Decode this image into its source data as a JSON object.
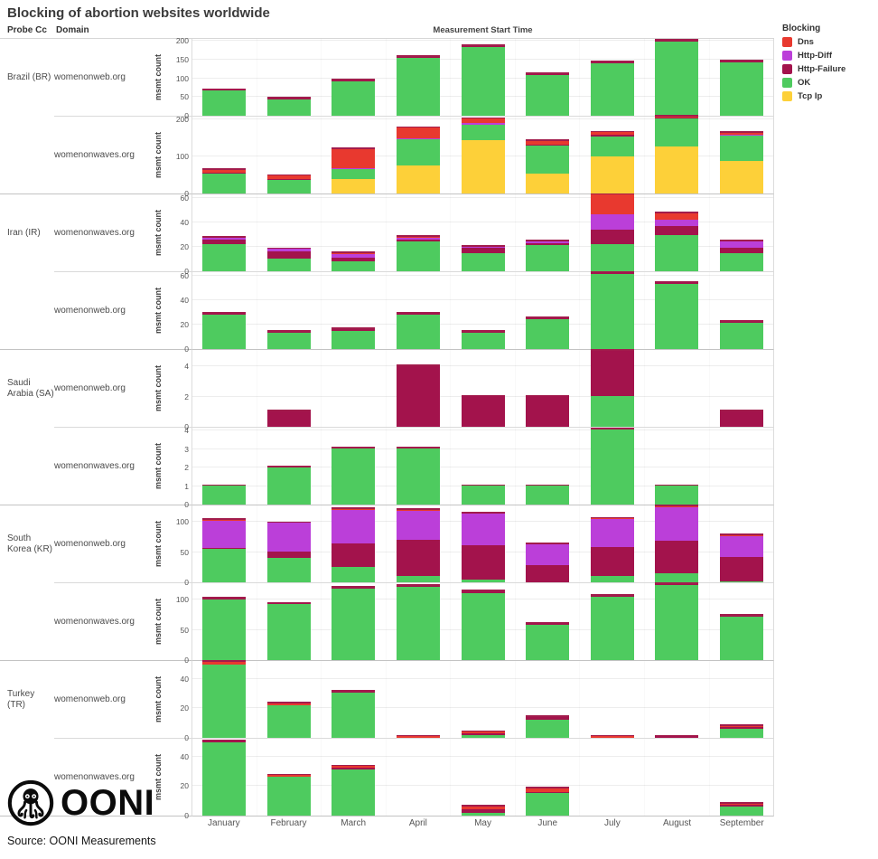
{
  "title": "Blocking of abortion websites worldwide",
  "source": "Source: OONI Measurements",
  "logo": {
    "wordmark": "OONI"
  },
  "header": {
    "probe_cc": "Probe Cc",
    "domain": "Domain",
    "axis_title": "Measurement Start Time",
    "y_label": "msmt count"
  },
  "colors": {
    "dns": "#e8392f",
    "http_diff": "#bb3fd9",
    "http_failure": "#a3134c",
    "ok": "#4ecb5f",
    "tcp_ip": "#fdd039",
    "bar_top_stroke": "#a21c4c"
  },
  "legend": {
    "title": "Blocking",
    "items": [
      {
        "key": "dns",
        "label": "Dns",
        "color": "#e8392f"
      },
      {
        "key": "http_diff",
        "label": "Http-Diff",
        "color": "#bb3fd9"
      },
      {
        "key": "http_failure",
        "label": "Http-Failure",
        "color": "#a3134c"
      },
      {
        "key": "ok",
        "label": "OK",
        "color": "#4ecb5f"
      },
      {
        "key": "tcp_ip",
        "label": "Tcp Ip",
        "color": "#fdd039"
      }
    ]
  },
  "chart_data": {
    "type": "bar",
    "stacked": true,
    "title": "Blocking of abortion websites worldwide",
    "xlabel": "Measurement Start Time",
    "ylabel": "msmt count",
    "legend_position": "top-right",
    "categories": [
      "January",
      "February",
      "March",
      "April",
      "May",
      "June",
      "July",
      "August",
      "September"
    ],
    "stack_order": [
      "tcp_ip",
      "ok",
      "http_failure",
      "http_diff",
      "dns"
    ],
    "facets": [
      {
        "country_label": "Brazil (BR)",
        "domain": "womenonweb.org",
        "group_end": false,
        "yticks": [
          0,
          50,
          100,
          150,
          200
        ],
        "scale_max": 205,
        "series": {
          "ok": [
            66,
            44,
            91,
            153,
            181,
            107,
            139,
            196,
            141
          ],
          "http_failure": [
            2,
            2,
            3,
            3,
            3,
            3,
            2,
            3,
            3
          ]
        }
      },
      {
        "country_label": "",
        "domain": "womenonwaves.org",
        "group_end": true,
        "yticks": [
          0,
          100,
          200
        ],
        "scale_max": 207,
        "series": {
          "tcp_ip": [
            0,
            0,
            38,
            75,
            143,
            53,
            100,
            125,
            87
          ],
          "ok": [
            52,
            37,
            28,
            70,
            40,
            75,
            52,
            75,
            68
          ],
          "http_failure": [
            2,
            2,
            0,
            0,
            0,
            2,
            5,
            2,
            0
          ],
          "http_diff": [
            0,
            0,
            2,
            3,
            6,
            0,
            0,
            0,
            2
          ],
          "dns": [
            8,
            8,
            50,
            27,
            10,
            10,
            6,
            3,
            4
          ]
        }
      },
      {
        "country_label": "Iran (IR)",
        "domain": "womenonwaves.org",
        "group_end": false,
        "yticks": [
          0,
          20,
          40,
          60
        ],
        "scale_max": 63,
        "series": {
          "ok": [
            22,
            10,
            8,
            24,
            15,
            21,
            22,
            29,
            15
          ],
          "http_failure": [
            4,
            6,
            3,
            2,
            4,
            2,
            12,
            8,
            4
          ],
          "http_diff": [
            1,
            2,
            3,
            1,
            1,
            1,
            12,
            5,
            5
          ],
          "dns": [
            0,
            0,
            1,
            1,
            0,
            0,
            16,
            5,
            0
          ]
        }
      },
      {
        "country_label": "",
        "domain": "womenonweb.org",
        "group_end": true,
        "yticks": [
          0,
          20,
          40,
          60
        ],
        "scale_max": 63,
        "series": {
          "ok": [
            28,
            13,
            15,
            28,
            13,
            24,
            61,
            53,
            21
          ],
          "http_failure": [
            1,
            1,
            1,
            1,
            1,
            1,
            1,
            1,
            1
          ]
        }
      },
      {
        "country_label": "Saudi Arabia (SA)",
        "domain": "womenonweb.org",
        "group_end": false,
        "yticks": [
          0,
          2,
          4
        ],
        "scale_max": 5.1,
        "series": {
          "ok": [
            0,
            0,
            0,
            0,
            0,
            0,
            2,
            0,
            0
          ],
          "http_failure": [
            0,
            1,
            0,
            4,
            2,
            2,
            3,
            0,
            1
          ]
        }
      },
      {
        "country_label": "",
        "domain": "womenonwaves.org",
        "group_end": true,
        "yticks": [
          0,
          1,
          2,
          3,
          4
        ],
        "scale_max": 4.15,
        "series": {
          "ok": [
            1,
            2,
            3,
            3,
            1,
            1,
            4,
            1,
            0
          ]
        }
      },
      {
        "country_label": "South Korea (KR)",
        "domain": "womenonweb.org",
        "group_end": false,
        "yticks": [
          0,
          50,
          100
        ],
        "scale_max": 127,
        "series": {
          "ok": [
            54,
            40,
            25,
            11,
            4,
            0,
            10,
            15,
            2
          ],
          "http_failure": [
            1,
            10,
            38,
            58,
            56,
            28,
            47,
            53,
            39
          ],
          "http_diff": [
            45,
            47,
            55,
            48,
            52,
            34,
            46,
            54,
            34
          ],
          "dns": [
            1,
            0,
            2,
            1,
            0,
            0,
            1,
            2,
            1
          ]
        }
      },
      {
        "country_label": "",
        "domain": "womenonwaves.org",
        "group_end": true,
        "yticks": [
          0,
          50,
          100
        ],
        "scale_max": 127,
        "series": {
          "ok": [
            99,
            91,
            116,
            119,
            110,
            58,
            103,
            122,
            71
          ],
          "http_failure": [
            2,
            1,
            2,
            2,
            2,
            2,
            2,
            2,
            2
          ]
        }
      },
      {
        "country_label": "Turkey (TR)",
        "domain": "womenonweb.org",
        "group_end": false,
        "yticks": [
          0,
          20,
          40
        ],
        "scale_max": 52,
        "series": {
          "ok": [
            49,
            22,
            30,
            0,
            2,
            12,
            0,
            0,
            6
          ],
          "http_failure": [
            0,
            0,
            1,
            0,
            1,
            2,
            0,
            1,
            1
          ],
          "dns": [
            2,
            1,
            0,
            1,
            1,
            0,
            1,
            0,
            1
          ]
        }
      },
      {
        "country_label": "",
        "domain": "womenonwaves.org",
        "group_end": true,
        "yticks": [
          0,
          20,
          40
        ],
        "scale_max": 52,
        "series": {
          "ok": [
            49,
            26,
            31,
            0,
            2,
            15,
            0,
            0,
            6
          ],
          "http_failure": [
            1,
            0,
            1,
            0,
            2,
            1,
            0,
            0,
            1
          ],
          "dns": [
            0,
            1,
            1,
            0,
            2,
            2,
            0,
            0,
            1
          ]
        }
      }
    ]
  }
}
